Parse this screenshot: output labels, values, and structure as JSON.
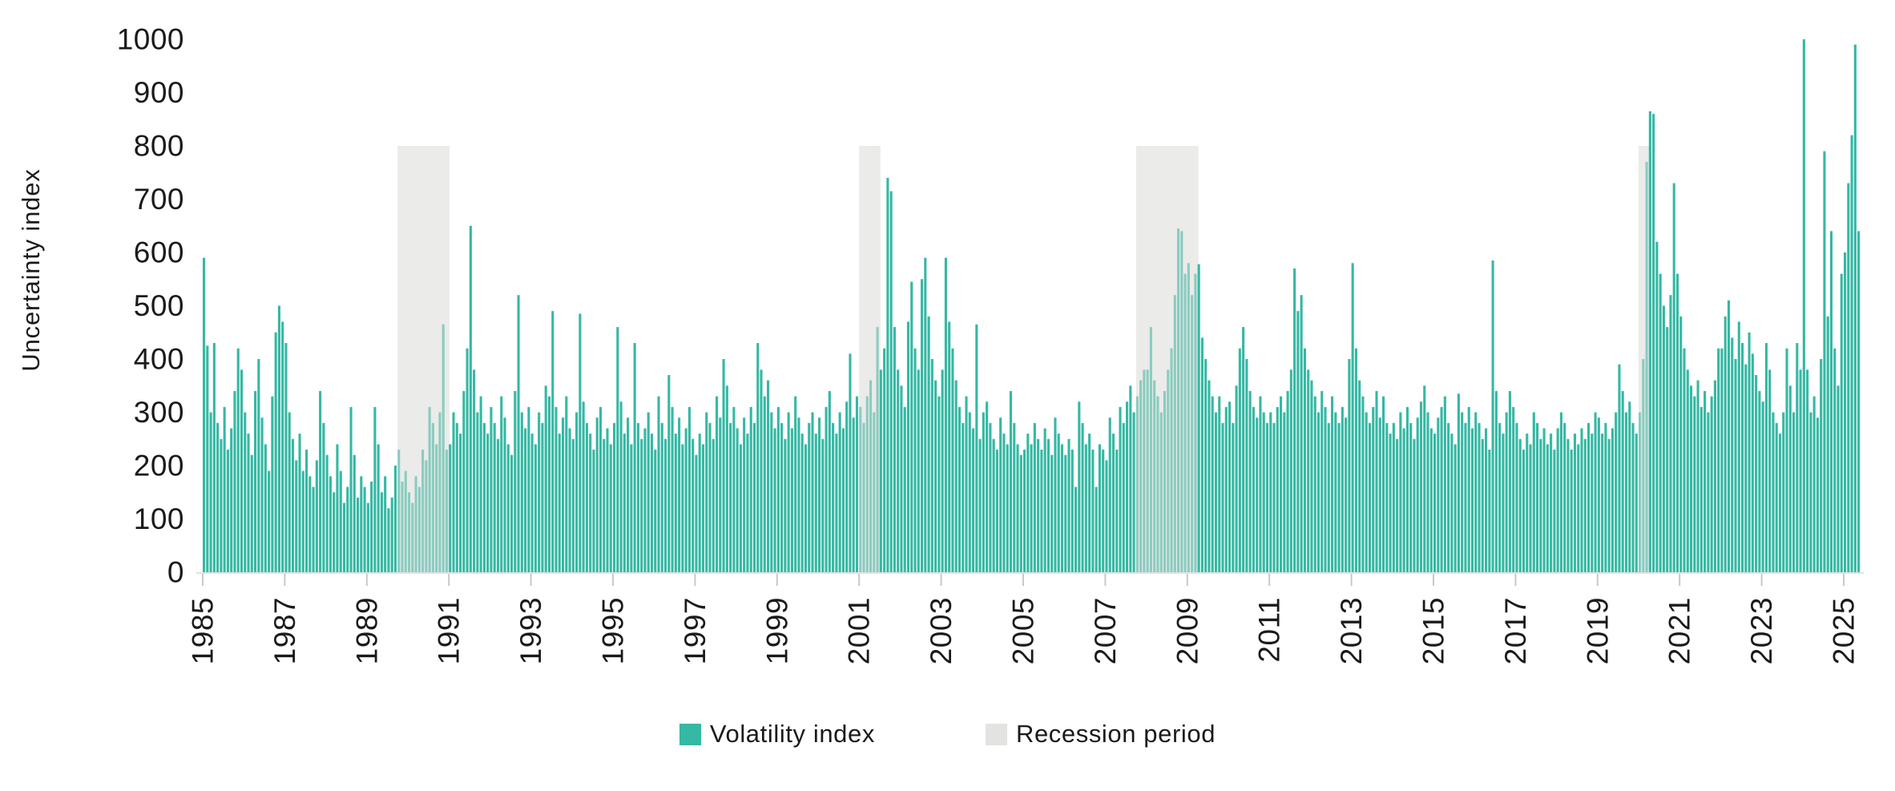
{
  "colors": {
    "series": "#35b8a4",
    "series_muted": "#8accc0",
    "recession_band": "#ebebe9",
    "recession_legend": "#e3e3e1",
    "text": "#1a1a1a",
    "tick": "#c9c9c9",
    "axis_line": "#d9d9d9"
  },
  "legend": {
    "volatility_label": "Volatility index",
    "recession_label": "Recession period"
  },
  "chart_data": {
    "type": "bar",
    "title": "",
    "xlabel": "",
    "ylabel": "Uncertainty index",
    "ylim": [
      0,
      1000
    ],
    "y_ticks": [
      0,
      100,
      200,
      300,
      400,
      500,
      600,
      700,
      800,
      900,
      1000
    ],
    "x_ticks": [
      1985,
      1987,
      1989,
      1991,
      1993,
      1995,
      1997,
      1999,
      2001,
      2003,
      2005,
      2007,
      2009,
      2011,
      2013,
      2015,
      2017,
      2019,
      2021,
      2023,
      2025
    ],
    "x_start_year": 1985,
    "points_per_year": 12,
    "series_name": "Volatility index",
    "recession_label": "Recession period",
    "recession_band_top": 800,
    "recessions": [
      {
        "start": 1989.75,
        "end": 1991.02
      },
      {
        "start": 2001.0,
        "end": 2001.52
      },
      {
        "start": 2007.75,
        "end": 2009.27
      },
      {
        "start": 2020.0,
        "end": 2020.27
      }
    ],
    "values": [
      590,
      425,
      300,
      430,
      280,
      250,
      310,
      230,
      270,
      340,
      420,
      380,
      300,
      260,
      220,
      340,
      400,
      290,
      240,
      190,
      330,
      450,
      500,
      470,
      430,
      300,
      250,
      210,
      260,
      190,
      230,
      180,
      160,
      210,
      340,
      280,
      220,
      180,
      150,
      240,
      190,
      130,
      160,
      310,
      220,
      140,
      180,
      160,
      130,
      170,
      310,
      240,
      150,
      180,
      120,
      140,
      200,
      230,
      170,
      190,
      150,
      130,
      180,
      160,
      230,
      210,
      310,
      280,
      240,
      300,
      465,
      230,
      240,
      300,
      280,
      260,
      340,
      420,
      650,
      380,
      300,
      330,
      280,
      260,
      310,
      280,
      250,
      330,
      290,
      240,
      220,
      340,
      520,
      300,
      270,
      310,
      260,
      240,
      300,
      280,
      350,
      330,
      490,
      310,
      260,
      290,
      330,
      270,
      250,
      300,
      485,
      320,
      280,
      260,
      230,
      290,
      310,
      250,
      270,
      240,
      280,
      460,
      320,
      260,
      290,
      240,
      430,
      280,
      250,
      270,
      300,
      260,
      230,
      330,
      280,
      250,
      370,
      310,
      260,
      290,
      240,
      270,
      310,
      250,
      220,
      260,
      240,
      300,
      280,
      250,
      330,
      290,
      400,
      350,
      280,
      310,
      270,
      240,
      290,
      260,
      310,
      280,
      430,
      380,
      330,
      360,
      300,
      270,
      310,
      280,
      250,
      300,
      270,
      330,
      290,
      260,
      240,
      280,
      300,
      260,
      290,
      250,
      310,
      340,
      280,
      260,
      300,
      270,
      320,
      410,
      290,
      330,
      310,
      280,
      330,
      360,
      300,
      460,
      380,
      420,
      740,
      715,
      460,
      380,
      350,
      310,
      470,
      545,
      420,
      380,
      550,
      590,
      480,
      400,
      360,
      330,
      380,
      590,
      470,
      420,
      360,
      310,
      280,
      330,
      300,
      270,
      465,
      250,
      300,
      320,
      280,
      250,
      230,
      290,
      260,
      240,
      340,
      280,
      240,
      220,
      230,
      260,
      240,
      280,
      250,
      230,
      270,
      250,
      220,
      290,
      260,
      240,
      220,
      250,
      230,
      160,
      320,
      280,
      240,
      260,
      230,
      160,
      240,
      230,
      210,
      290,
      260,
      230,
      310,
      280,
      320,
      350,
      300,
      330,
      360,
      380,
      380,
      460,
      360,
      330,
      300,
      340,
      380,
      420,
      520,
      645,
      640,
      560,
      580,
      520,
      560,
      578,
      440,
      400,
      360,
      330,
      300,
      330,
      280,
      310,
      320,
      280,
      350,
      420,
      460,
      400,
      340,
      310,
      290,
      330,
      300,
      280,
      300,
      280,
      310,
      330,
      300,
      340,
      380,
      570,
      490,
      520,
      420,
      380,
      360,
      330,
      300,
      340,
      310,
      280,
      330,
      300,
      280,
      310,
      290,
      400,
      580,
      420,
      360,
      330,
      300,
      280,
      310,
      340,
      290,
      330,
      280,
      260,
      280,
      250,
      300,
      270,
      310,
      280,
      250,
      290,
      320,
      350,
      300,
      270,
      260,
      290,
      310,
      330,
      280,
      260,
      240,
      335,
      300,
      280,
      310,
      270,
      300,
      280,
      250,
      270,
      230,
      585,
      340,
      280,
      260,
      300,
      340,
      310,
      280,
      250,
      230,
      260,
      240,
      300,
      280,
      250,
      270,
      240,
      260,
      230,
      270,
      300,
      280,
      250,
      230,
      260,
      240,
      270,
      250,
      280,
      260,
      300,
      290,
      260,
      280,
      250,
      270,
      300,
      390,
      340,
      300,
      320,
      280,
      260,
      300,
      400,
      770,
      865,
      860,
      620,
      560,
      500,
      460,
      520,
      730,
      560,
      480,
      420,
      380,
      350,
      330,
      360,
      310,
      340,
      300,
      330,
      360,
      420,
      420,
      480,
      510,
      440,
      400,
      470,
      430,
      390,
      450,
      410,
      370,
      340,
      320,
      430,
      380,
      300,
      280,
      260,
      300,
      420,
      350,
      300,
      430,
      380,
      1000,
      380,
      300,
      330,
      290,
      400,
      790,
      480,
      640,
      420,
      350,
      560,
      600,
      730,
      820,
      990,
      640
    ]
  }
}
